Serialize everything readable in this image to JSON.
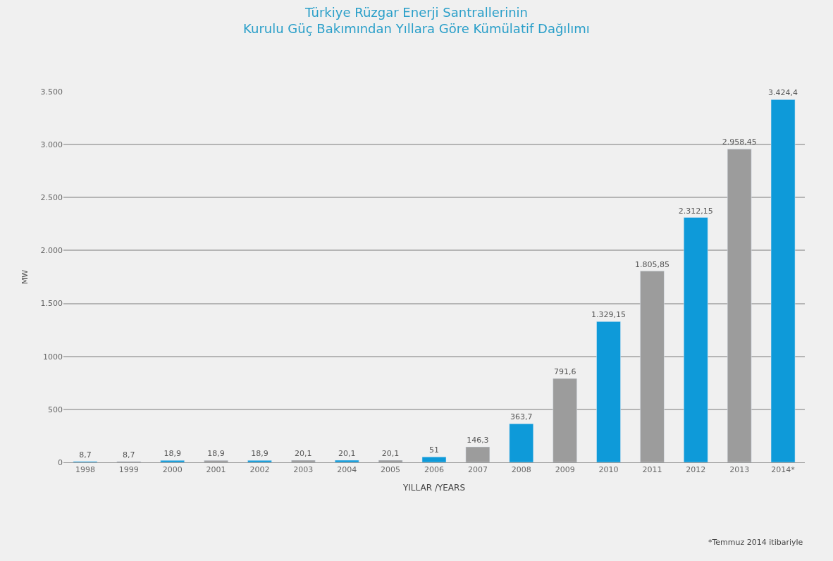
{
  "chart_data": {
    "type": "bar",
    "title": "Türkiye Rüzgar Enerji Santrallerinin\nKurulu Güç Bakımından Yıllara Göre Kümülatif Dağılımı",
    "xlabel": "YILLAR /YEARS",
    "ylabel": "MW",
    "categories": [
      "1998",
      "1999",
      "2000",
      "2001",
      "2002",
      "2003",
      "2004",
      "2005",
      "2006",
      "2007",
      "2008",
      "2009",
      "2010",
      "2011",
      "2012",
      "2013",
      "2014*"
    ],
    "values": [
      8.7,
      8.7,
      18.9,
      18.9,
      18.9,
      20.1,
      20.1,
      20.1,
      51,
      146.3,
      363.7,
      791.6,
      1329.15,
      1805.85,
      2312.15,
      2958.45,
      3424.4
    ],
    "value_labels": [
      "8,7",
      "8,7",
      "18,9",
      "18,9",
      "18,9",
      "20,1",
      "20,1",
      "20,1",
      "51",
      "146,3",
      "363,7",
      "791,6",
      "1.329,15",
      "1.805,85",
      "2.312,15",
      "2.958,45",
      "3.424,4"
    ],
    "colors": [
      "#0e9ad9",
      "#9c9c9c",
      "#0e9ad9",
      "#9c9c9c",
      "#0e9ad9",
      "#9c9c9c",
      "#0e9ad9",
      "#9c9c9c",
      "#0e9ad9",
      "#9c9c9c",
      "#0e9ad9",
      "#9c9c9c",
      "#0e9ad9",
      "#9c9c9c",
      "#0e9ad9",
      "#9c9c9c",
      "#0e9ad9"
    ],
    "ylim": [
      0,
      3500
    ],
    "yticks": [
      0,
      500,
      1000,
      {
        "value": 1500,
        "label": "1.500"
      },
      {
        "value": 2000,
        "label": "2.000"
      },
      {
        "value": 2500,
        "label": "2.500"
      },
      {
        "value": 3000,
        "label": "3.000"
      },
      {
        "value": 3500,
        "label": "3.500"
      }
    ],
    "grid": "y",
    "annotations": [
      "*Temmuz 2014 itibariyle"
    ]
  }
}
